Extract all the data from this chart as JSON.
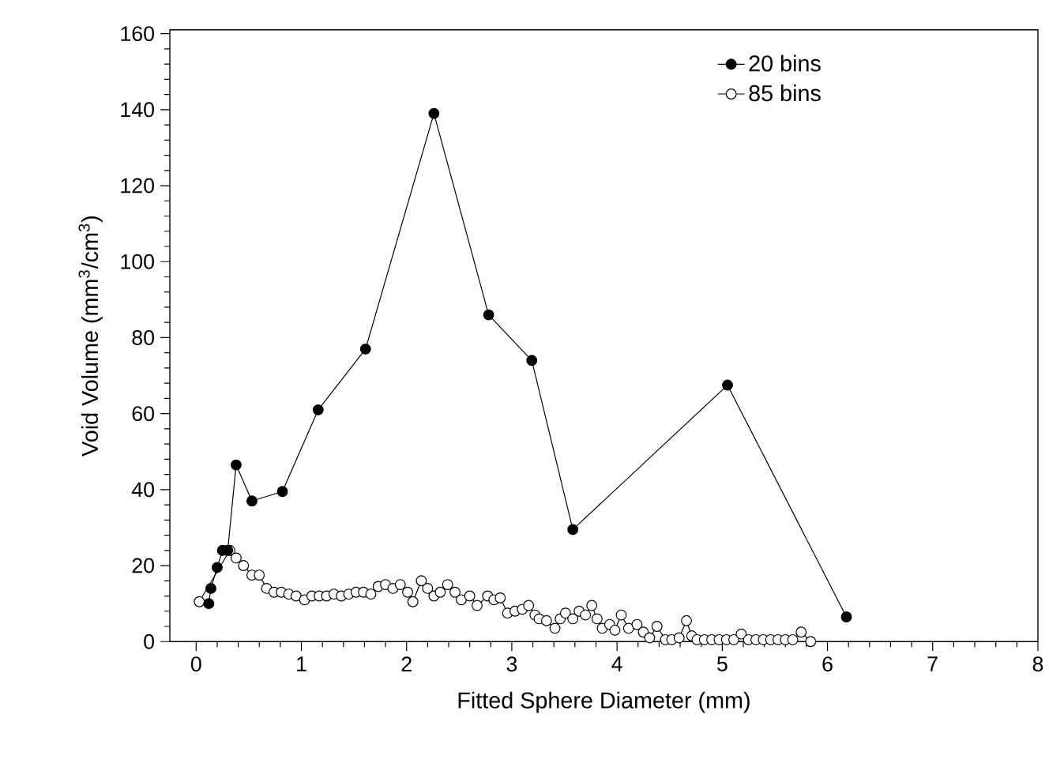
{
  "chart_data": {
    "type": "line",
    "xlabel": "Fitted Sphere Diameter (mm)",
    "ylabel": "Void Volume (mm$^{3}$/cm$^{3}$)",
    "xlim": [
      -0.25,
      8
    ],
    "ylim": [
      0,
      161
    ],
    "xticks": [
      0,
      1,
      2,
      3,
      4,
      5,
      6,
      7,
      8
    ],
    "yticks": [
      0,
      20,
      40,
      60,
      80,
      100,
      120,
      140,
      160
    ],
    "grid": false,
    "legend": "top right",
    "marker": "circle",
    "line_style": "solid",
    "series": [
      {
        "name": "20 bins",
        "color": "#000000",
        "x": [
          0.12,
          0.14,
          0.2,
          0.25,
          0.3,
          0.38,
          0.53,
          0.82,
          1.16,
          1.61,
          2.26,
          2.78,
          3.19,
          3.58,
          5.05,
          6.18
        ],
        "values": [
          10,
          14,
          19.5,
          24,
          24,
          46.5,
          37,
          39.5,
          61,
          77,
          139,
          86,
          74,
          29.5,
          67.5,
          6.5
        ]
      },
      {
        "name": "85 bins",
        "color": "#000000",
        "x": [
          0.03,
          0.32,
          0.38,
          0.45,
          0.53,
          0.6,
          0.67,
          0.74,
          0.81,
          0.88,
          0.95,
          1.03,
          1.1,
          1.17,
          1.24,
          1.31,
          1.38,
          1.45,
          1.52,
          1.59,
          1.66,
          1.73,
          1.8,
          1.87,
          1.94,
          2.01,
          2.06,
          2.14,
          2.2,
          2.26,
          2.32,
          2.39,
          2.46,
          2.52,
          2.6,
          2.67,
          2.77,
          2.83,
          2.89,
          2.96,
          3.03,
          3.1,
          3.16,
          3.22,
          3.26,
          3.33,
          3.41,
          3.46,
          3.51,
          3.58,
          3.64,
          3.7,
          3.76,
          3.81,
          3.86,
          3.93,
          3.98,
          4.04,
          4.11,
          4.19,
          4.25,
          4.31,
          4.38,
          4.46,
          4.52,
          4.59,
          4.66,
          4.71,
          4.76,
          4.83,
          4.9,
          4.97,
          5.04,
          5.11,
          5.18,
          5.25,
          5.32,
          5.39,
          5.46,
          5.53,
          5.6,
          5.67,
          5.75,
          5.84
        ],
        "values": [
          10.5,
          24,
          22,
          20,
          17.5,
          17.5,
          14,
          13,
          13,
          12.5,
          12,
          11,
          12,
          12,
          12,
          12.5,
          12,
          12.5,
          13,
          13,
          12.5,
          14.5,
          15,
          14,
          15,
          13,
          10.5,
          16,
          14,
          12,
          13,
          15,
          13,
          11,
          12,
          9.5,
          12,
          11,
          11.5,
          7.5,
          8,
          8.5,
          9.5,
          7,
          6,
          5.5,
          3.5,
          6,
          7.5,
          6,
          8,
          7,
          9.5,
          6,
          3.5,
          4.5,
          3,
          7,
          3.5,
          4.5,
          2.5,
          1,
          4,
          0.5,
          0.5,
          1,
          5.5,
          1.5,
          0.5,
          0.5,
          0.5,
          0.5,
          0.5,
          0.5,
          2,
          0.5,
          0.5,
          0.5,
          0.5,
          0.5,
          0.5,
          0.5,
          2.5,
          0
        ]
      }
    ]
  }
}
